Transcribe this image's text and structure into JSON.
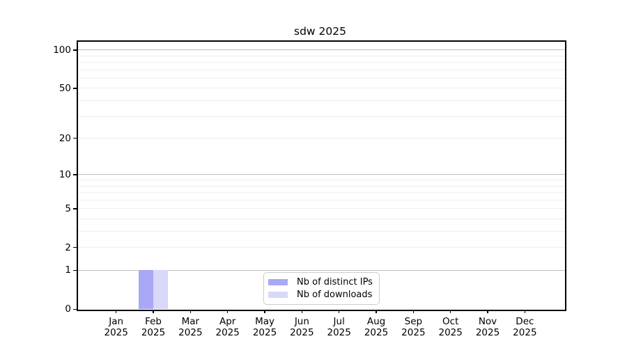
{
  "title": "sdw 2025",
  "legend": {
    "items": [
      {
        "label": "Nb of distinct IPs"
      },
      {
        "label": "Nb of downloads"
      }
    ]
  },
  "colors": {
    "distinct_ips": "#a8a8f5",
    "downloads": "#d8d8f8",
    "grid_major": "#bdbdbd",
    "grid_minor": "#efefef",
    "axis": "#000000",
    "legend_border": "#cccccc",
    "background": "#ffffff"
  },
  "chart_data": {
    "type": "bar",
    "title": "sdw 2025",
    "categories": [
      "Jan 2025",
      "Feb 2025",
      "Mar 2025",
      "Apr 2025",
      "May 2025",
      "Jun 2025",
      "Jul 2025",
      "Aug 2025",
      "Sep 2025",
      "Oct 2025",
      "Nov 2025",
      "Dec 2025"
    ],
    "series": [
      {
        "name": "Nb of distinct IPs",
        "color": "#a8a8f5",
        "values": [
          0,
          1,
          0,
          0,
          0,
          0,
          0,
          0,
          0,
          0,
          0,
          0
        ]
      },
      {
        "name": "Nb of downloads",
        "color": "#d8d8f8",
        "values": [
          0,
          1,
          0,
          0,
          0,
          0,
          0,
          0,
          0,
          0,
          0,
          0
        ]
      }
    ],
    "xlabel": "",
    "ylabel": "",
    "yscale": "log1p",
    "ylim": [
      0,
      115
    ],
    "ytick_values": [
      0,
      1,
      2,
      5,
      10,
      20,
      50,
      100
    ],
    "ytick_labels": [
      "0",
      "1",
      "2",
      "5",
      "10",
      "20",
      "50",
      "100"
    ],
    "grid_major_values": [
      1,
      10,
      100
    ],
    "grid_minor_values": [
      2,
      3,
      4,
      5,
      6,
      7,
      8,
      9,
      20,
      30,
      40,
      50,
      60,
      70,
      80,
      90
    ],
    "grid": "on",
    "legend_position": "lower center",
    "bar_layout": "grouped"
  }
}
